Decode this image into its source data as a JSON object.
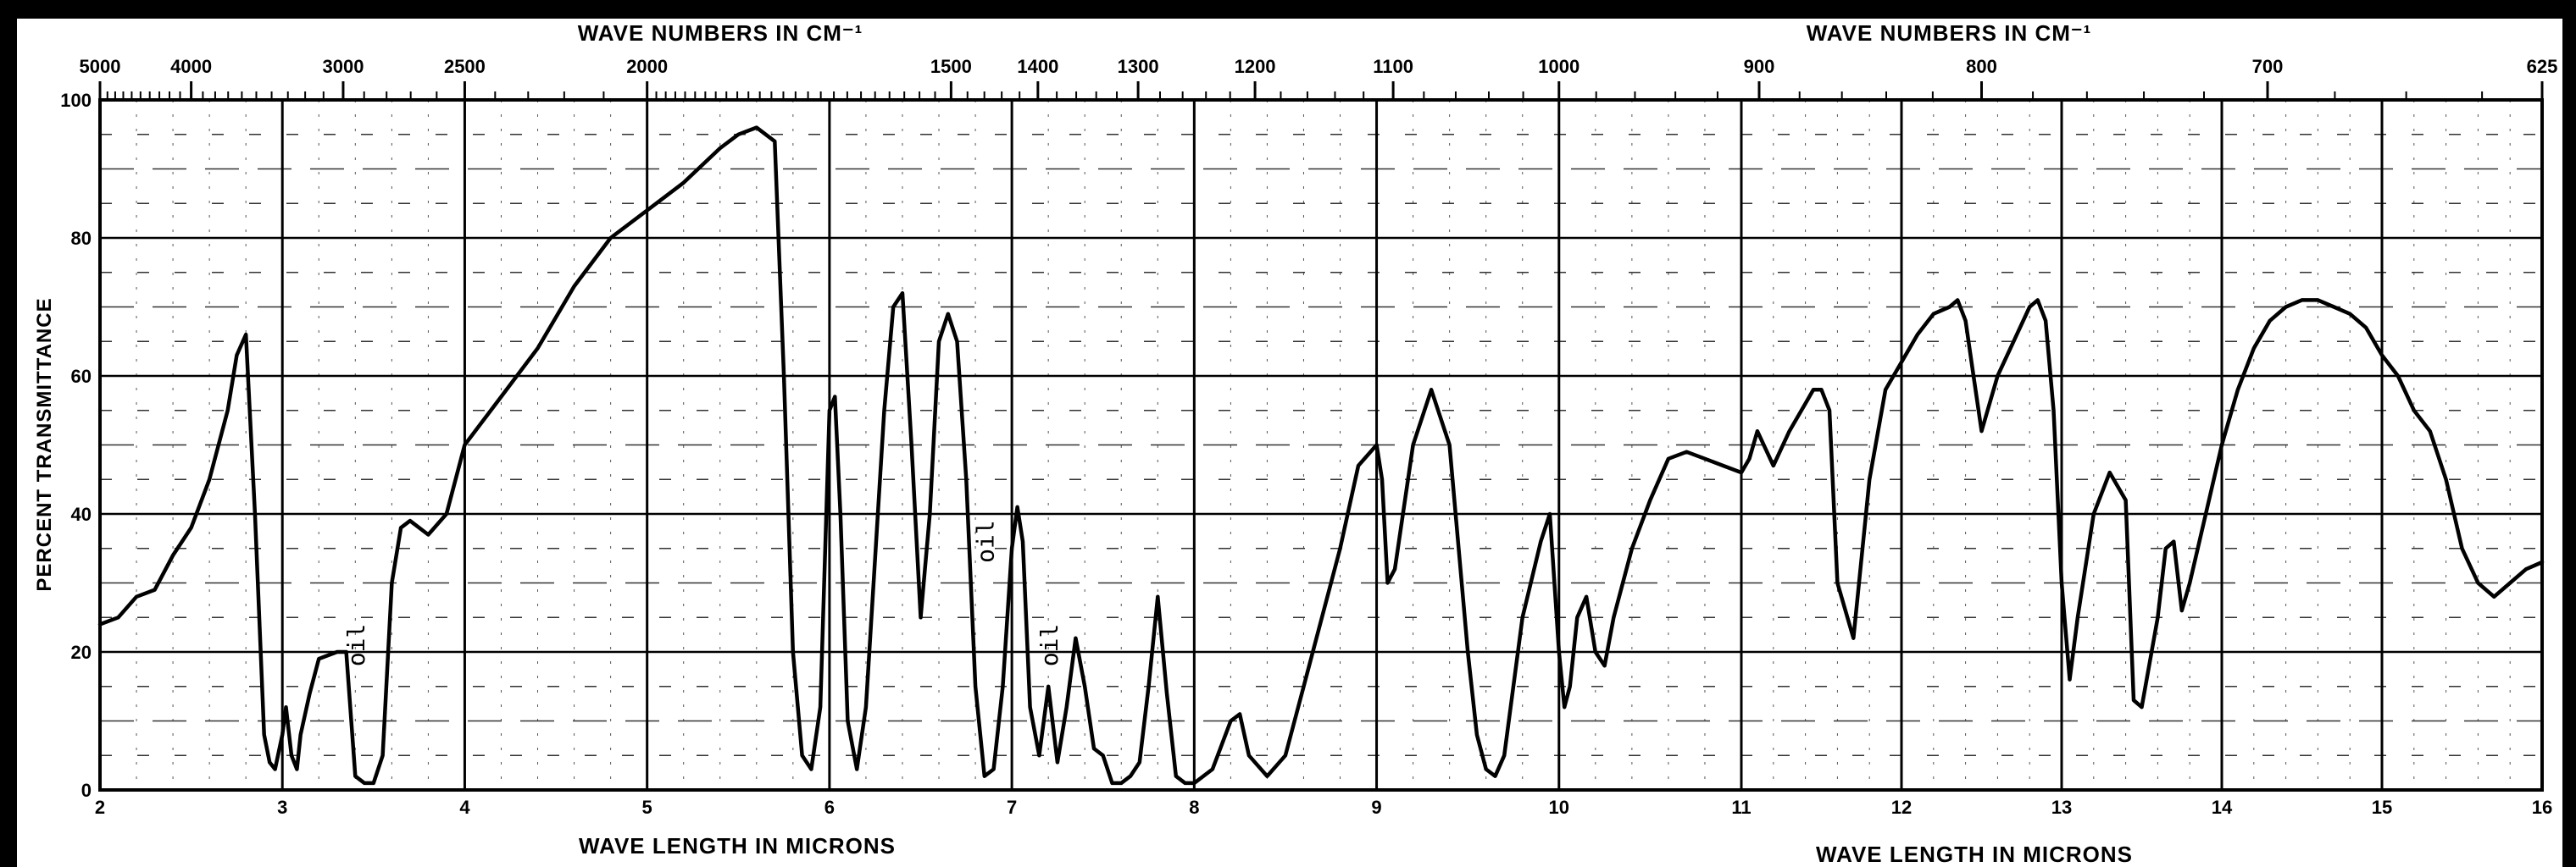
{
  "chart_data": {
    "type": "line",
    "top_axis_label_left": "WAVE NUMBERS IN CM⁻¹",
    "top_axis_label_right": "WAVE NUMBERS IN CM⁻¹",
    "bottom_axis_label_left": "WAVE LENGTH IN MICRONS",
    "bottom_axis_label_right": "WAVE LENGTH IN MICRONS",
    "ylabel": "PERCENT TRANSMITTANCE",
    "xlim": [
      2,
      16
    ],
    "ylim": [
      0,
      100
    ],
    "x_ticks": [
      "2",
      "3",
      "4",
      "5",
      "6",
      "7",
      "8",
      "9",
      "10",
      "11",
      "12",
      "13",
      "14",
      "15",
      "16"
    ],
    "y_ticks": [
      "0",
      "20",
      "40",
      "60",
      "80",
      "100"
    ],
    "top_ticks": [
      {
        "label": "5000",
        "wn": 5000
      },
      {
        "label": "4000",
        "wn": 4000
      },
      {
        "label": "3000",
        "wn": 3000
      },
      {
        "label": "2500",
        "wn": 2500
      },
      {
        "label": "2000",
        "wn": 2000
      },
      {
        "label": "1500",
        "wn": 1500
      },
      {
        "label": "1400",
        "wn": 1400
      },
      {
        "label": "1300",
        "wn": 1300
      },
      {
        "label": "1200",
        "wn": 1200
      },
      {
        "label": "1100",
        "wn": 1100
      },
      {
        "label": "1000",
        "wn": 1000
      },
      {
        "label": "900",
        "wn": 900
      },
      {
        "label": "800",
        "wn": 800
      },
      {
        "label": "700",
        "wn": 700
      },
      {
        "label": "625",
        "wn": 625
      }
    ],
    "annotations": [
      {
        "text": "oil",
        "x": 3.45,
        "y": 21
      },
      {
        "text": "oil",
        "x": 6.9,
        "y": 36
      },
      {
        "text": "oil",
        "x": 7.25,
        "y": 21
      }
    ],
    "grid": true,
    "series": [
      {
        "x": [
          2.0,
          2.1,
          2.2,
          2.3,
          2.4,
          2.5,
          2.6,
          2.7,
          2.75,
          2.8,
          2.85,
          2.9,
          2.93,
          2.96,
          3.0,
          3.02,
          3.05,
          3.08,
          3.1,
          3.15,
          3.2,
          3.3,
          3.35,
          3.4,
          3.45,
          3.5,
          3.55,
          3.6,
          3.65,
          3.7,
          3.8,
          3.9,
          4.0,
          4.2,
          4.4,
          4.6,
          4.8,
          5.0,
          5.2,
          5.4,
          5.5,
          5.6,
          5.7,
          5.75,
          5.8,
          5.85,
          5.9,
          5.95,
          6.0,
          6.03,
          6.06,
          6.1,
          6.15,
          6.2,
          6.3,
          6.35,
          6.4,
          6.45,
          6.5,
          6.55,
          6.6,
          6.65,
          6.7,
          6.75,
          6.8,
          6.85,
          6.9,
          6.95,
          7.0,
          7.03,
          7.06,
          7.1,
          7.15,
          7.2,
          7.25,
          7.3,
          7.35,
          7.4,
          7.45,
          7.5,
          7.55,
          7.6,
          7.65,
          7.7,
          7.75,
          7.8,
          7.85,
          7.9,
          7.95,
          8.0,
          8.1,
          8.2,
          8.25,
          8.3,
          8.4,
          8.5,
          8.6,
          8.7,
          8.8,
          8.9,
          9.0,
          9.03,
          9.06,
          9.1,
          9.2,
          9.3,
          9.4,
          9.45,
          9.5,
          9.55,
          9.6,
          9.65,
          9.7,
          9.8,
          9.9,
          9.95,
          10.0,
          10.03,
          10.06,
          10.1,
          10.15,
          10.2,
          10.25,
          10.3,
          10.4,
          10.5,
          10.6,
          10.7,
          10.8,
          10.9,
          11.0,
          11.05,
          11.1,
          11.2,
          11.3,
          11.4,
          11.45,
          11.5,
          11.55,
          11.6,
          11.7,
          11.8,
          11.9,
          12.0,
          12.1,
          12.2,
          12.3,
          12.35,
          12.4,
          12.45,
          12.5,
          12.6,
          12.7,
          12.8,
          12.85,
          12.9,
          12.95,
          13.0,
          13.05,
          13.1,
          13.2,
          13.3,
          13.4,
          13.45,
          13.5,
          13.6,
          13.65,
          13.7,
          13.75,
          13.8,
          13.9,
          14.0,
          14.1,
          14.2,
          14.3,
          14.4,
          14.5,
          14.6,
          14.7,
          14.8,
          14.9,
          15.0,
          15.1,
          15.2,
          15.3,
          15.4,
          15.5,
          15.6,
          15.7,
          15.8,
          15.9,
          16.0
        ],
        "y": [
          24,
          25,
          28,
          29,
          34,
          38,
          45,
          55,
          63,
          66,
          40,
          8,
          4,
          3,
          8,
          12,
          5,
          3,
          8,
          14,
          19,
          20,
          20,
          2,
          1,
          1,
          5,
          30,
          38,
          39,
          37,
          40,
          50,
          57,
          64,
          73,
          80,
          84,
          88,
          93,
          95,
          96,
          94,
          60,
          20,
          5,
          3,
          12,
          55,
          57,
          40,
          10,
          3,
          12,
          55,
          70,
          72,
          50,
          25,
          40,
          65,
          69,
          65,
          45,
          15,
          2,
          3,
          15,
          35,
          41,
          36,
          12,
          5,
          15,
          4,
          12,
          22,
          15,
          6,
          5,
          1,
          1,
          2,
          4,
          15,
          28,
          14,
          2,
          1,
          1,
          3,
          10,
          11,
          5,
          2,
          5,
          15,
          25,
          35,
          47,
          50,
          45,
          30,
          32,
          50,
          58,
          50,
          35,
          20,
          8,
          3,
          2,
          5,
          25,
          36,
          40,
          20,
          12,
          15,
          25,
          28,
          20,
          18,
          25,
          35,
          42,
          48,
          49,
          48,
          47,
          46,
          48,
          52,
          47,
          52,
          56,
          58,
          58,
          55,
          30,
          22,
          45,
          58,
          62,
          66,
          69,
          70,
          71,
          68,
          60,
          52,
          60,
          65,
          70,
          71,
          68,
          55,
          30,
          16,
          25,
          40,
          46,
          42,
          13,
          12,
          25,
          35,
          36,
          26,
          30,
          40,
          50,
          58,
          64,
          68,
          70,
          71,
          71,
          70,
          69,
          67,
          63,
          60,
          55,
          52,
          45,
          35,
          30,
          28,
          30,
          32,
          33
        ]
      }
    ]
  }
}
